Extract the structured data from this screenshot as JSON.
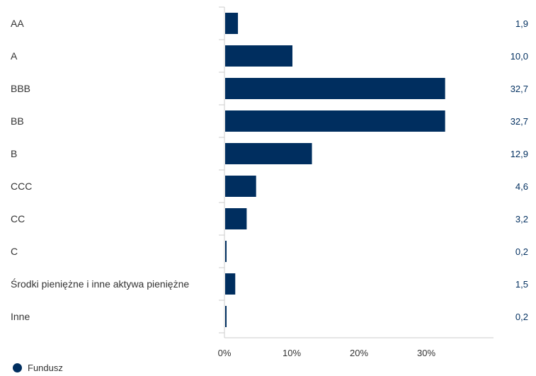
{
  "chart_data": {
    "type": "bar",
    "orientation": "horizontal",
    "categories": [
      "AA",
      "A",
      "BBB",
      "BB",
      "B",
      "CCC",
      "CC",
      "C",
      "Środki pieniężne i inne aktywa pieniężne",
      "Inne"
    ],
    "series": [
      {
        "name": "Fundusz",
        "values": [
          1.9,
          10.0,
          32.7,
          32.7,
          12.9,
          4.6,
          3.2,
          0.2,
          1.5,
          0.2
        ],
        "value_labels": [
          "1,9",
          "10,0",
          "32,7",
          "32,7",
          "12,9",
          "4,6",
          "3,2",
          "0,2",
          "1,5",
          "0,2"
        ]
      }
    ],
    "x_ticks": [
      "0%",
      "10%",
      "20%",
      "30%"
    ],
    "xlim": [
      0,
      40
    ],
    "legend": "bottom-left",
    "grid": false
  },
  "colors": {
    "bar": "#002e5f",
    "axis": "#cccccc",
    "value_text": "#002e5f"
  }
}
